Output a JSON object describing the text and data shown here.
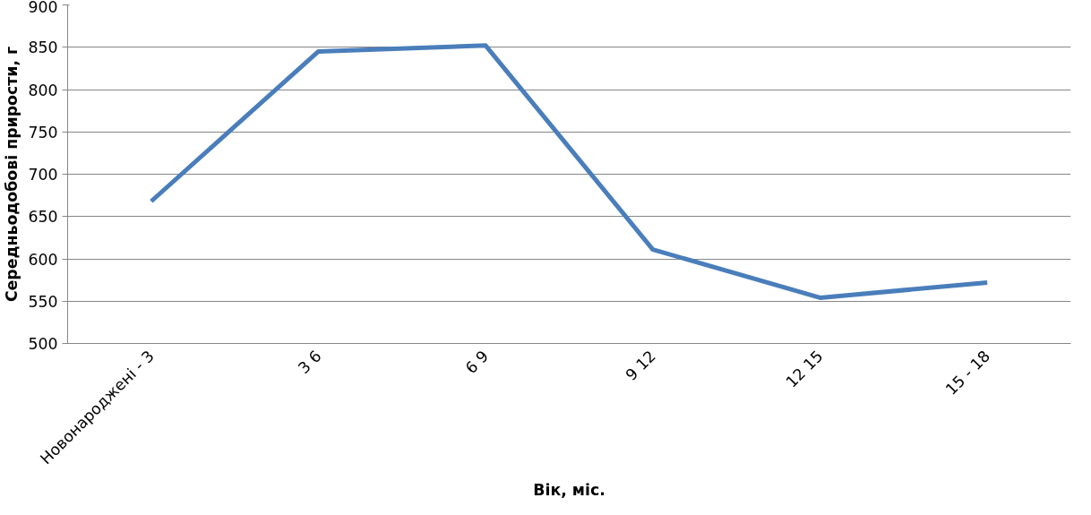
{
  "chart_data": {
    "type": "line",
    "xlabel": "Вік, міс.",
    "ylabel": "Середньодобові прирости, г",
    "categories": [
      "Новонароджені - 3",
      "3 6",
      "6 9",
      "9 12",
      "12 15",
      "15 - 18"
    ],
    "series": [
      {
        "color": "#4a7ebb",
        "values": [
          668,
          845,
          852,
          611,
          554,
          572
        ]
      }
    ],
    "ylim": [
      500,
      900
    ],
    "yticks": [
      500,
      550,
      600,
      650,
      700,
      750,
      800,
      850,
      900
    ],
    "grid": "y",
    "marker": "none",
    "line_style": "solid"
  }
}
